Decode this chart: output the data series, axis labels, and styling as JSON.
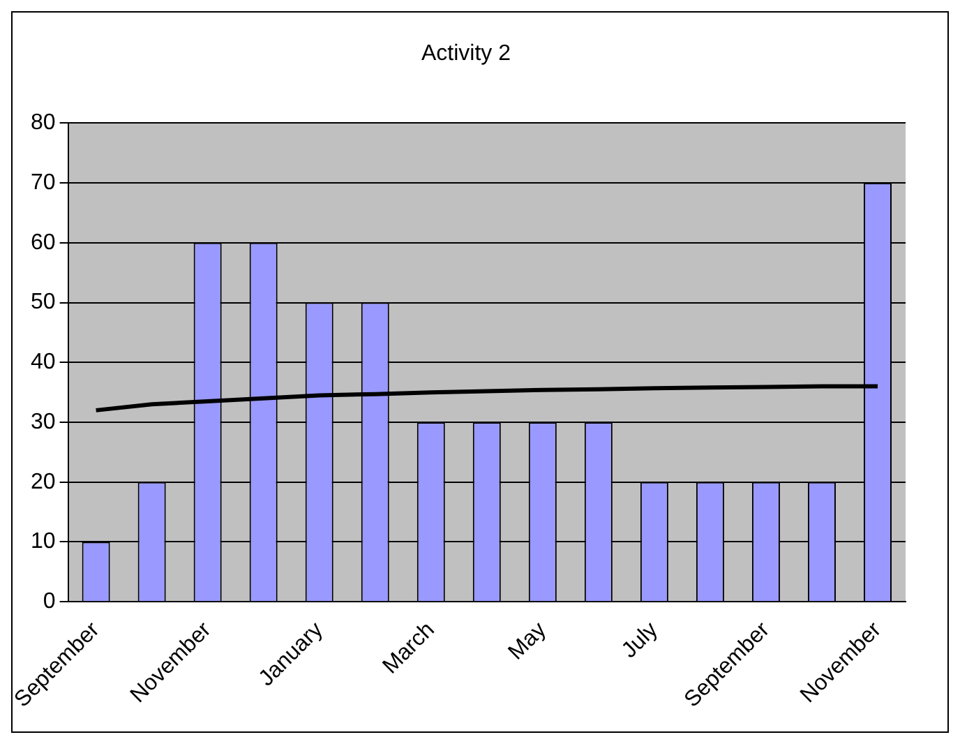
{
  "chart_data": {
    "type": "bar",
    "title": "Activity 2",
    "categories": [
      "September",
      null,
      "November",
      null,
      "January",
      null,
      "March",
      null,
      "May",
      null,
      "July",
      null,
      "September",
      null,
      "November"
    ],
    "series": [
      {
        "color": "#9999ff",
        "values": [
          10,
          20,
          60,
          60,
          50,
          50,
          30,
          30,
          30,
          30,
          20,
          20,
          20,
          20,
          70
        ]
      },
      {
        "type": "line",
        "color": "#000000",
        "values": [
          32,
          33,
          33.5,
          34,
          34.5,
          34.7,
          35,
          35.2,
          35.4,
          35.5,
          35.7,
          35.8,
          35.9,
          36,
          36
        ]
      }
    ],
    "ylim": [
      0,
      80
    ],
    "yticks": [
      0,
      10,
      20,
      30,
      40,
      50,
      60,
      70,
      80
    ],
    "grid": "y",
    "legend": false,
    "marker": "none",
    "line_style": "solid"
  }
}
